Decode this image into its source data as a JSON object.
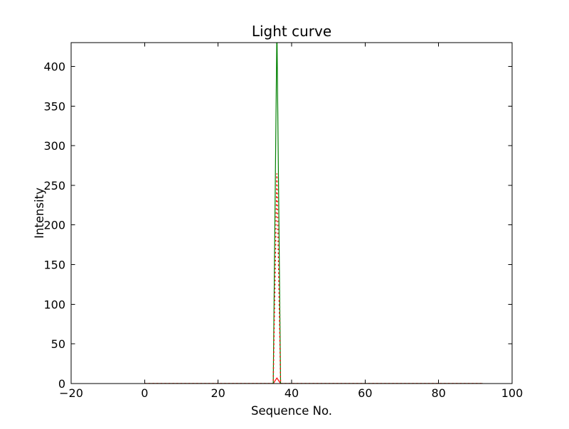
{
  "window": {
    "background": "#ffffff"
  },
  "chart_data": {
    "type": "line",
    "title": "Light curve",
    "xlabel": "Sequence No.",
    "ylabel": "Intensity",
    "xlim": [
      -20,
      100
    ],
    "ylim": [
      0,
      430
    ],
    "xticks": [
      -20,
      0,
      20,
      40,
      60,
      80,
      100
    ],
    "xtick_labels": [
      "−20",
      "0",
      "20",
      "40",
      "60",
      "80",
      "100"
    ],
    "yticks": [
      0,
      50,
      100,
      150,
      200,
      250,
      300,
      350,
      400
    ],
    "ytick_labels": [
      "0",
      "50",
      "100",
      "150",
      "200",
      "250",
      "300",
      "350",
      "400"
    ],
    "grid": false,
    "legend": false,
    "tick_direction": "in",
    "axis_color": "#000000",
    "plot_background": "#ffffff",
    "series": [
      {
        "name": "red-solid-small-peak",
        "color": "#ff0000",
        "linestyle": "solid",
        "points": [
          [
            0,
            0
          ],
          [
            35,
            0
          ],
          [
            36,
            7
          ],
          [
            37,
            0
          ],
          [
            92,
            0
          ]
        ]
      },
      {
        "name": "green-solid-spike",
        "color": "#008000",
        "linestyle": "solid",
        "clipped_at_top": true,
        "points": [
          [
            0,
            0
          ],
          [
            35,
            0
          ],
          [
            36,
            450
          ],
          [
            37,
            0
          ],
          [
            92,
            0
          ]
        ]
      },
      {
        "name": "red-dotted-spike",
        "color": "#ff0000",
        "linestyle": "dotted",
        "points": [
          [
            0,
            0
          ],
          [
            35,
            0
          ],
          [
            36,
            265
          ],
          [
            37,
            0
          ],
          [
            92,
            0
          ]
        ]
      }
    ]
  }
}
